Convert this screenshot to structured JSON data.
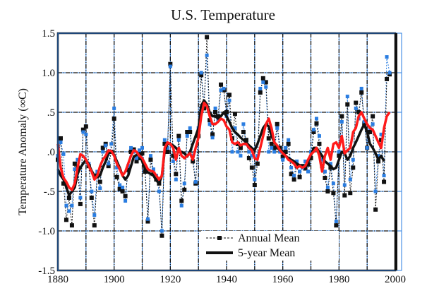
{
  "chart_data": {
    "type": "line",
    "title": "U.S. Temperature",
    "xlabel": "",
    "ylabel": "Temperature Anomaly (°C)",
    "ylabel_rendered": "Temperature Anomaly (∞C)",
    "xlim": [
      1880,
      2000
    ],
    "ylim": [
      -1.5,
      1.5
    ],
    "x_ticks": [
      1880,
      1900,
      1920,
      1940,
      1960,
      1980,
      2000
    ],
    "x_tick_labels": [
      "1880",
      "1900",
      "1920",
      "1940",
      "1960",
      "1980",
      "2000"
    ],
    "y_ticks": [
      -1.5,
      -1.0,
      -0.5,
      0.0,
      0.5,
      1.0,
      1.5
    ],
    "y_tick_labels": [
      "-1.5",
      "-1.0",
      "-.5",
      ".0",
      ".5",
      "1.0",
      "1.5"
    ],
    "grid": true,
    "grid_x_step": 10,
    "legend": {
      "placement": "bottom-center",
      "entries": [
        {
          "label": "Annual Mean",
          "style": "dashed-line-square-marker"
        },
        {
          "label": "5-year Mean",
          "style": "thick-solid-line"
        }
      ]
    },
    "colors": {
      "annual_black": "#111111",
      "annual_blue": "#2a7de1",
      "five_year_black": "#111111",
      "five_year_red": "#ff1a1a",
      "grid_blue": "#2a7de1"
    },
    "x": [
      1880,
      1881,
      1882,
      1883,
      1884,
      1885,
      1886,
      1887,
      1888,
      1889,
      1890,
      1891,
      1892,
      1893,
      1894,
      1895,
      1896,
      1897,
      1898,
      1899,
      1900,
      1901,
      1902,
      1903,
      1904,
      1905,
      1906,
      1907,
      1908,
      1909,
      1910,
      1911,
      1912,
      1913,
      1914,
      1915,
      1916,
      1917,
      1918,
      1919,
      1920,
      1921,
      1922,
      1923,
      1924,
      1925,
      1926,
      1927,
      1928,
      1929,
      1930,
      1931,
      1932,
      1933,
      1934,
      1935,
      1936,
      1937,
      1938,
      1939,
      1940,
      1941,
      1942,
      1943,
      1944,
      1945,
      1946,
      1947,
      1948,
      1949,
      1950,
      1951,
      1952,
      1953,
      1954,
      1955,
      1956,
      1957,
      1958,
      1959,
      1960,
      1961,
      1962,
      1963,
      1964,
      1965,
      1966,
      1967,
      1968,
      1969,
      1970,
      1971,
      1972,
      1973,
      1974,
      1975,
      1976,
      1977,
      1978,
      1979,
      1980,
      1981,
      1982,
      1983,
      1984,
      1985,
      1986,
      1987,
      1988,
      1989,
      1990,
      1991,
      1992,
      1993,
      1994,
      1995,
      1996,
      1997,
      1998
    ],
    "series": [
      {
        "name": "Annual Mean",
        "color": "#111111",
        "values": [
          -0.1,
          0.17,
          -0.4,
          -0.86,
          -0.58,
          -0.93,
          -0.15,
          -0.2,
          -0.66,
          0.28,
          0.32,
          -0.18,
          -0.58,
          -0.93,
          -0.3,
          -0.38,
          0.05,
          0.1,
          -0.18,
          0.0,
          0.42,
          -0.32,
          -0.47,
          -0.5,
          -0.56,
          -0.23,
          0.0,
          0.03,
          -0.12,
          -0.08,
          -0.02,
          -0.25,
          -0.88,
          -0.1,
          -0.28,
          -0.35,
          -0.4,
          -1.06,
          0.1,
          0.0,
          1.11,
          -0.05,
          -0.28,
          0.2,
          -0.62,
          -0.48,
          0.25,
          0.25,
          -0.12,
          -0.4,
          0.2,
          0.97,
          0.55,
          1.45,
          0.4,
          0.22,
          0.5,
          0.45,
          0.85,
          0.78,
          0.5,
          0.72,
          0.17,
          0.48,
          0.1,
          0.05,
          0.25,
          0.15,
          -0.08,
          -0.2,
          -0.42,
          -0.15,
          0.75,
          0.93,
          0.88,
          0.17,
          0.1,
          0.05,
          0.35,
          0.05,
          -0.06,
          0.0,
          0.1,
          -0.28,
          -0.35,
          -0.18,
          -0.32,
          -0.18,
          -0.21,
          -0.16,
          -0.08,
          0.25,
          0.36,
          0.1,
          -0.18,
          -0.33,
          -0.5,
          -0.2,
          -0.52,
          -0.93,
          -0.05,
          0.45,
          -0.55,
          0.6,
          -0.52,
          -0.2,
          0.62,
          0.5,
          0.75,
          0.36,
          0.05,
          0.25,
          0.45,
          -0.73,
          -0.12,
          0.15,
          -0.38,
          0.92,
          0.98
        ]
      },
      {
        "name": "Annual Mean (overlay)",
        "color": "#2a7de1",
        "values": [
          -0.05,
          0.12,
          -0.03,
          -0.68,
          -0.75,
          -0.68,
          -0.22,
          -0.1,
          -0.58,
          0.25,
          0.22,
          -0.15,
          -0.5,
          -0.8,
          -0.25,
          -0.46,
          0.0,
          0.08,
          -0.15,
          0.1,
          0.55,
          -0.2,
          -0.42,
          -0.45,
          -0.62,
          -0.18,
          0.05,
          0.0,
          -0.08,
          0.02,
          0.05,
          -0.2,
          -0.85,
          -0.05,
          -0.22,
          -0.3,
          -0.5,
          -1.0,
          0.15,
          0.05,
          1.08,
          -0.12,
          -0.35,
          0.15,
          -0.68,
          -0.4,
          0.2,
          0.3,
          -0.05,
          -0.38,
          0.3,
          1.0,
          0.62,
          1.22,
          0.35,
          0.18,
          0.55,
          0.4,
          0.78,
          0.8,
          0.45,
          0.65,
          0.0,
          0.3,
          0.0,
          -0.05,
          0.35,
          0.1,
          0.0,
          -0.05,
          -0.35,
          -0.05,
          0.8,
          0.88,
          0.82,
          0.0,
          0.05,
          0.0,
          0.3,
          0.0,
          -0.1,
          0.05,
          0.15,
          -0.2,
          -0.3,
          -0.12,
          -0.25,
          -0.2,
          -0.12,
          -0.25,
          0.0,
          0.28,
          0.42,
          0.2,
          -0.1,
          -0.25,
          -0.45,
          -0.15,
          -0.4,
          -0.88,
          0.0,
          0.38,
          -0.42,
          0.7,
          -0.35,
          -0.1,
          0.55,
          0.42,
          0.8,
          0.38,
          0.05,
          0.3,
          0.35,
          -0.5,
          -0.05,
          0.22,
          -0.3,
          1.2,
          1.0
        ]
      },
      {
        "name": "5-year Mean",
        "color": "#111111",
        "values": [
          -0.22,
          -0.3,
          -0.35,
          -0.45,
          -0.55,
          -0.5,
          -0.45,
          -0.28,
          -0.2,
          -0.15,
          -0.1,
          -0.16,
          -0.24,
          -0.3,
          -0.32,
          -0.3,
          -0.2,
          -0.12,
          -0.02,
          0.0,
          -0.04,
          -0.12,
          -0.2,
          -0.3,
          -0.35,
          -0.3,
          -0.18,
          -0.06,
          -0.04,
          -0.02,
          -0.12,
          -0.22,
          -0.26,
          -0.28,
          -0.3,
          -0.36,
          -0.4,
          -0.3,
          0.02,
          0.1,
          0.1,
          0.08,
          0.05,
          0.0,
          0.0,
          -0.02,
          -0.06,
          0.0,
          0.1,
          0.2,
          0.3,
          0.58,
          0.65,
          0.6,
          0.5,
          0.45,
          0.45,
          0.42,
          0.45,
          0.5,
          0.45,
          0.38,
          0.3,
          0.25,
          0.22,
          0.18,
          0.15,
          0.12,
          0.08,
          0.05,
          0.02,
          0.1,
          0.2,
          0.3,
          0.35,
          0.32,
          0.2,
          0.12,
          0.05,
          0.02,
          0.0,
          -0.05,
          -0.08,
          -0.1,
          -0.12,
          -0.15,
          -0.17,
          -0.18,
          -0.18,
          -0.12,
          -0.05,
          0.05,
          0.05,
          0.0,
          -0.05,
          -0.12,
          -0.15,
          -0.18,
          -0.22,
          -0.2,
          -0.1,
          0.0,
          -0.02,
          -0.1,
          -0.05,
          0.05,
          0.12,
          0.2,
          0.28,
          0.35,
          0.25,
          0.1,
          0.05,
          -0.02,
          -0.1,
          -0.05,
          -0.12
        ]
      },
      {
        "name": "5-year Mean (overlay)",
        "color": "#ff1a1a",
        "values": [
          0.1,
          -0.2,
          -0.33,
          -0.38,
          -0.45,
          -0.48,
          -0.4,
          -0.2,
          -0.03,
          -0.05,
          -0.1,
          -0.18,
          -0.25,
          -0.35,
          -0.3,
          -0.18,
          -0.1,
          -0.05,
          0.02,
          0.01,
          -0.05,
          -0.15,
          -0.22,
          -0.3,
          -0.25,
          -0.15,
          -0.05,
          0.02,
          0.0,
          -0.05,
          -0.08,
          -0.15,
          -0.22,
          -0.24,
          -0.25,
          -0.3,
          -0.35,
          -0.3,
          0.05,
          0.12,
          0.1,
          0.05,
          -0.1,
          0.05,
          -0.05,
          -0.08,
          -0.05,
          -0.02,
          -0.1,
          0.05,
          0.18,
          0.45,
          0.62,
          0.58,
          0.45,
          0.35,
          0.35,
          0.38,
          0.42,
          0.4,
          0.32,
          0.28,
          0.12,
          0.1,
          0.12,
          0.08,
          0.1,
          0.1,
          0.05,
          0.02,
          -0.08,
          -0.1,
          0.05,
          0.2,
          0.35,
          0.42,
          0.3,
          0.12,
          0.08,
          0.02,
          -0.02,
          -0.05,
          -0.1,
          -0.12,
          -0.15,
          -0.2,
          -0.18,
          -0.2,
          -0.18,
          -0.1,
          -0.03,
          0.0,
          0.05,
          -0.05,
          -0.25,
          -0.05,
          0.05,
          -0.1,
          0.1,
          0.12,
          0.05,
          0.2,
          -0.02,
          0.02,
          0.05,
          0.25,
          0.3,
          0.45,
          0.5,
          0.42,
          0.35,
          0.3,
          0.28,
          0.2,
          0.12,
          0.05,
          0.3,
          0.45,
          0.5
        ]
      }
    ]
  }
}
